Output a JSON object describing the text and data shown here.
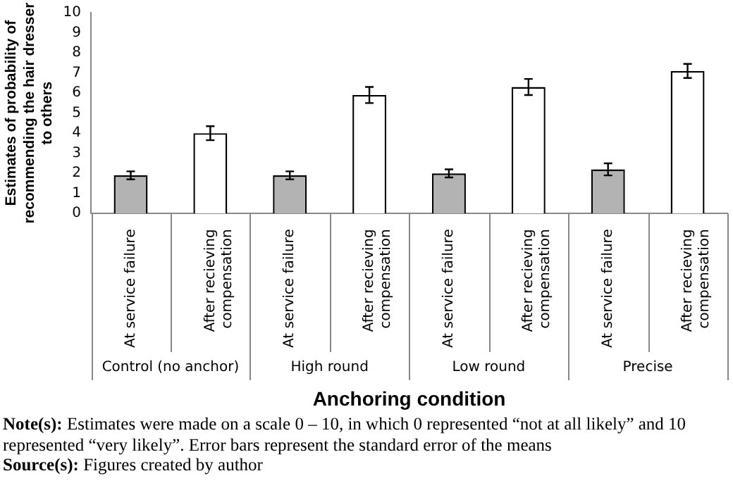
{
  "chart_data": {
    "type": "bar",
    "ylabel": "Estimates of probability of recommending the hair dresser to others",
    "xlabel": "Anchoring condition",
    "categories": [
      "At service failure",
      "After recieving compensation",
      "At service failure",
      "After recieving compensation",
      "At service failure",
      "After recieving compensation",
      "At service failure",
      "After recieving compensation"
    ],
    "values": [
      1.9,
      4.0,
      1.9,
      5.9,
      2.0,
      6.3,
      2.2,
      7.1
    ],
    "errors": [
      0.2,
      0.35,
      0.2,
      0.4,
      0.2,
      0.4,
      0.3,
      0.35
    ],
    "colors": [
      "#b3b3b3",
      "#ffffff",
      "#b3b3b3",
      "#ffffff",
      "#b3b3b3",
      "#ffffff",
      "#b3b3b3",
      "#ffffff"
    ],
    "ylim": [
      0,
      10
    ],
    "yticks": [
      0,
      1,
      2,
      3,
      4,
      5,
      6,
      7,
      8,
      9,
      10
    ],
    "grid": false,
    "legend": false,
    "annotations": [
      "Control (no anchor)",
      "High round",
      "Low round",
      "Precise",
      "Note(s): Estimates were made on a scale 0 – 10, in which 0 represented “not at all likely” and 10 represented “very likely”. Error bars represent the standard error of the means",
      "Source(s): Figures created by author"
    ]
  }
}
